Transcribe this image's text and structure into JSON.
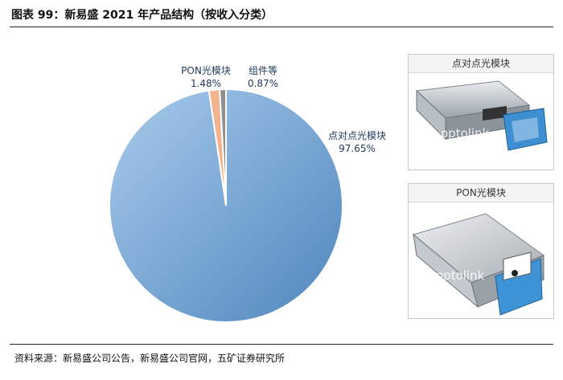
{
  "title": "图表 99：新易盛 2021 年产品结构（按收入分类）",
  "source": "资料来源：新易盛公司公告，新易盛公司官网，五矿证券研究所",
  "chart_data": {
    "type": "pie",
    "slices": [
      {
        "name": "点对点光模块",
        "value": 97.65,
        "label": "97.65%",
        "color": "#6aa0d3"
      },
      {
        "name": "PON光模块",
        "value": 1.48,
        "label": "1.48%",
        "color": "#f2b48f"
      },
      {
        "name": "组件等",
        "value": 0.87,
        "label": "0.87%",
        "color": "#8f8f8f"
      }
    ]
  },
  "panels": [
    {
      "title": "点对点光模块",
      "watermark": "optolink"
    },
    {
      "title": "PON光模块",
      "watermark": "optolink"
    }
  ]
}
